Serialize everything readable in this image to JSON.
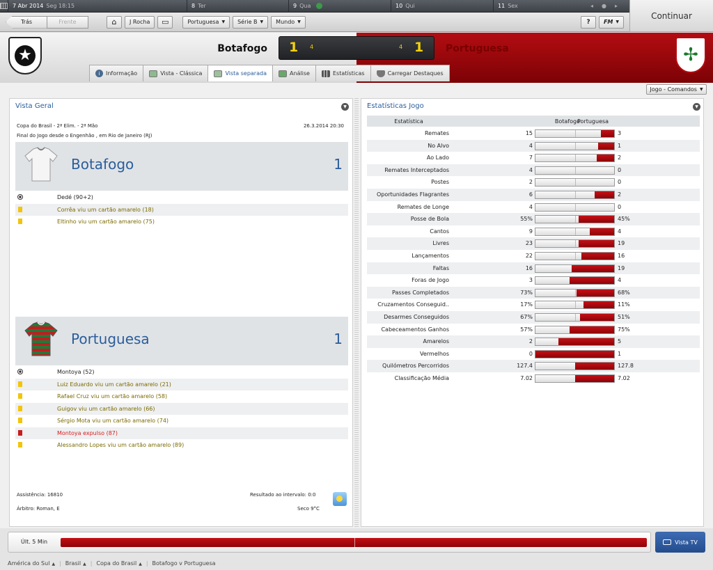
{
  "calendar": {
    "days": [
      {
        "num": "7 Abr 2014",
        "sub": "Seg 18:15",
        "width": 257
      },
      {
        "num": "8",
        "sub": "Ter",
        "width": 146
      },
      {
        "num": "9",
        "sub": "Qua",
        "width": 147
      },
      {
        "num": "10",
        "sub": "Qui",
        "width": 147
      },
      {
        "num": "11",
        "sub": "Sex",
        "width": 140
      }
    ]
  },
  "continue_label": "Continuar",
  "toolbar": {
    "back": "Trás",
    "forward": "Frente",
    "manager": "J Rocha",
    "club": "Portuguesa",
    "division": "Série B",
    "world": "Mundo",
    "help": "?",
    "fm": "FM"
  },
  "match": {
    "home_name": "Botafogo",
    "away_name": "Portuguesa",
    "home_goals": "1",
    "away_goals": "1",
    "home_shots": "4",
    "away_shots": "4"
  },
  "tabs": [
    {
      "label": "Informação"
    },
    {
      "label": "Vista - Clássica"
    },
    {
      "label": "Vista separada"
    },
    {
      "label": "Análise"
    },
    {
      "label": "Estatísticas"
    },
    {
      "label": "Carregar Destaques"
    }
  ],
  "commands_label": "Jogo - Comandos",
  "overview": {
    "title": "Vista Geral",
    "competition": "Copa do Brasil - 2ª Elim. - 2ª Mão",
    "venue": "Final do Jogo desde o Engenhão , em Rio de Janeiro (RJ)",
    "date": "26.3.2014 20:30",
    "home": {
      "name": "Botafogo",
      "score": "1",
      "events": [
        {
          "type": "goal",
          "text": "Dedé (90+2)"
        },
        {
          "type": "yellow",
          "text": "Corrêa viu um cartão amarelo (18)"
        },
        {
          "type": "yellow",
          "text": "Eltinho viu um cartão amarelo (75)"
        }
      ]
    },
    "away": {
      "name": "Portuguesa",
      "score": "1",
      "events": [
        {
          "type": "goal",
          "text": "Montoya (52)"
        },
        {
          "type": "yellow",
          "text": "Luiz Eduardo viu um cartão amarelo (21)"
        },
        {
          "type": "yellow",
          "text": "Rafael Cruz viu um cartão amarelo (58)"
        },
        {
          "type": "yellow",
          "text": "Guigov viu um cartão amarelo (66)"
        },
        {
          "type": "yellow",
          "text": "Sérgio Mota viu um cartão amarelo (74)"
        },
        {
          "type": "red",
          "text": "Montoya expulso (87)"
        },
        {
          "type": "yellow",
          "text": "Alessandro Lopes viu um cartão amarelo (89)"
        }
      ]
    },
    "attendance": "Assistência: 16810",
    "referee": "Árbitro: Roman, E",
    "halftime": "Resultado ao intervalo: 0:0",
    "weather": "Seco 9°C"
  },
  "stats": {
    "title": "Estatísticas Jogo",
    "col_stat": "Estatística",
    "col_home": "Botafogo",
    "col_away": "Portuguesa",
    "rows": [
      {
        "label": "Remates",
        "home": "15",
        "away": "3",
        "share": 0.17
      },
      {
        "label": "No Alvo",
        "home": "4",
        "away": "1",
        "share": 0.2
      },
      {
        "label": "Ao Lado",
        "home": "7",
        "away": "2",
        "share": 0.22
      },
      {
        "label": "Remates Interceptados",
        "home": "4",
        "away": "0",
        "share": 0
      },
      {
        "label": "Postes",
        "home": "2",
        "away": "0",
        "share": 0
      },
      {
        "label": "Oportunidades Flagrantes",
        "home": "6",
        "away": "2",
        "share": 0.25
      },
      {
        "label": "Remates de Longe",
        "home": "4",
        "away": "0",
        "share": 0
      },
      {
        "label": "Posse de Bola",
        "home": "55%",
        "away": "45%",
        "share": 0.45
      },
      {
        "label": "Cantos",
        "home": "9",
        "away": "4",
        "share": 0.31
      },
      {
        "label": "Livres",
        "home": "23",
        "away": "19",
        "share": 0.45
      },
      {
        "label": "Lançamentos",
        "home": "22",
        "away": "16",
        "share": 0.42
      },
      {
        "label": "Faltas",
        "home": "16",
        "away": "19",
        "share": 0.54
      },
      {
        "label": "Foras de Jogo",
        "home": "3",
        "away": "4",
        "share": 0.57
      },
      {
        "label": "Passes Completados",
        "home": "73%",
        "away": "68%",
        "share": 0.48
      },
      {
        "label": "Cruzamentos Conseguid..",
        "home": "17%",
        "away": "11%",
        "share": 0.39
      },
      {
        "label": "Desarmes Conseguidos",
        "home": "67%",
        "away": "51%",
        "share": 0.43
      },
      {
        "label": "Cabeceamentos Ganhos",
        "home": "57%",
        "away": "75%",
        "share": 0.57
      },
      {
        "label": "Amarelos",
        "home": "2",
        "away": "5",
        "share": 0.71
      },
      {
        "label": "Vermelhos",
        "home": "0",
        "away": "1",
        "share": 1
      },
      {
        "label": "Quilómetros Percorridos",
        "home": "127.4",
        "away": "127.8",
        "share": 0.5
      },
      {
        "label": "Classificação Média",
        "home": "7.02",
        "away": "7.02",
        "share": 0.5
      }
    ]
  },
  "timeline": {
    "label": "Últ. 5 Min"
  },
  "tv_label": "Vista TV",
  "breadcrumb": [
    {
      "label": "América do Sul"
    },
    {
      "label": "Brasil"
    },
    {
      "label": "Copa do Brasil"
    },
    {
      "label": "Botafogo v Portuguesa"
    }
  ],
  "colors": {
    "accent_blue": "#2a5d9b",
    "away_red": "#b30d12",
    "score_yellow": "#f5d20a"
  }
}
